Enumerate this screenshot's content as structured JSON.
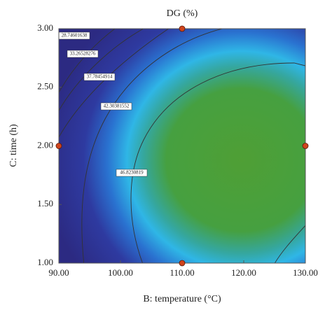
{
  "chart_data": {
    "type": "contour",
    "title": "DG (%)",
    "x_label": "B: temperature (°C)",
    "y_label": "C: time (h)",
    "xlim": [
      90,
      130
    ],
    "ylim": [
      1,
      3
    ],
    "xticks": [
      {
        "value": 90,
        "label": "90.00"
      },
      {
        "value": 100,
        "label": "100.00"
      },
      {
        "value": 110,
        "label": "110.00"
      },
      {
        "value": 120,
        "label": "120.00"
      },
      {
        "value": 130,
        "label": "130.00"
      }
    ],
    "yticks": [
      {
        "value": 1,
        "label": "1.00"
      },
      {
        "value": 1.5,
        "label": "1.50"
      },
      {
        "value": 2,
        "label": "2.00"
      },
      {
        "value": 2.5,
        "label": "2.50"
      },
      {
        "value": 3,
        "label": "3.00"
      }
    ],
    "levels": [
      28.74601638,
      33.26528276,
      37.78454914,
      42.30381552,
      46.8230819
    ],
    "points": {
      "x": [
        90,
        110,
        130,
        110
      ],
      "y": [
        2,
        3,
        2,
        1
      ],
      "color": "#d0441c"
    }
  }
}
